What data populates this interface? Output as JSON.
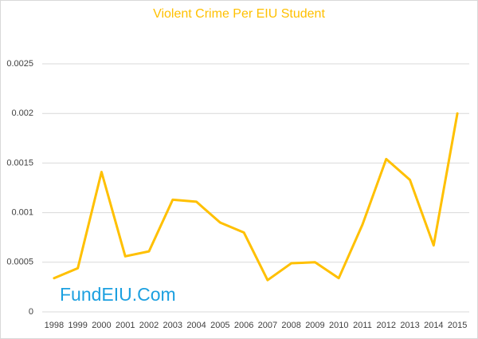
{
  "chart_data": {
    "type": "line",
    "title": "Violent Crime Per EIU Student",
    "annotation": "FundEIU.Com",
    "categories": [
      "1998",
      "1999",
      "2000",
      "2001",
      "2002",
      "2003",
      "2004",
      "2005",
      "2006",
      "2007",
      "2008",
      "2009",
      "2010",
      "2011",
      "2012",
      "2013",
      "2014",
      "2015"
    ],
    "values": [
      0.00034,
      0.00044,
      0.00141,
      0.00056,
      0.00061,
      0.00113,
      0.00111,
      0.0009,
      0.0008,
      0.00032,
      0.00049,
      0.0005,
      0.00034,
      0.00088,
      0.00154,
      0.00133,
      0.00067,
      0.002
    ],
    "color": "#ffc000",
    "title_color": "#ffc000",
    "annotation_color": "#1ca0e0",
    "ylim": [
      0,
      0.0025
    ],
    "yticks": [
      0,
      0.0005,
      0.001,
      0.0015,
      0.002,
      0.0025
    ],
    "grid": true
  }
}
